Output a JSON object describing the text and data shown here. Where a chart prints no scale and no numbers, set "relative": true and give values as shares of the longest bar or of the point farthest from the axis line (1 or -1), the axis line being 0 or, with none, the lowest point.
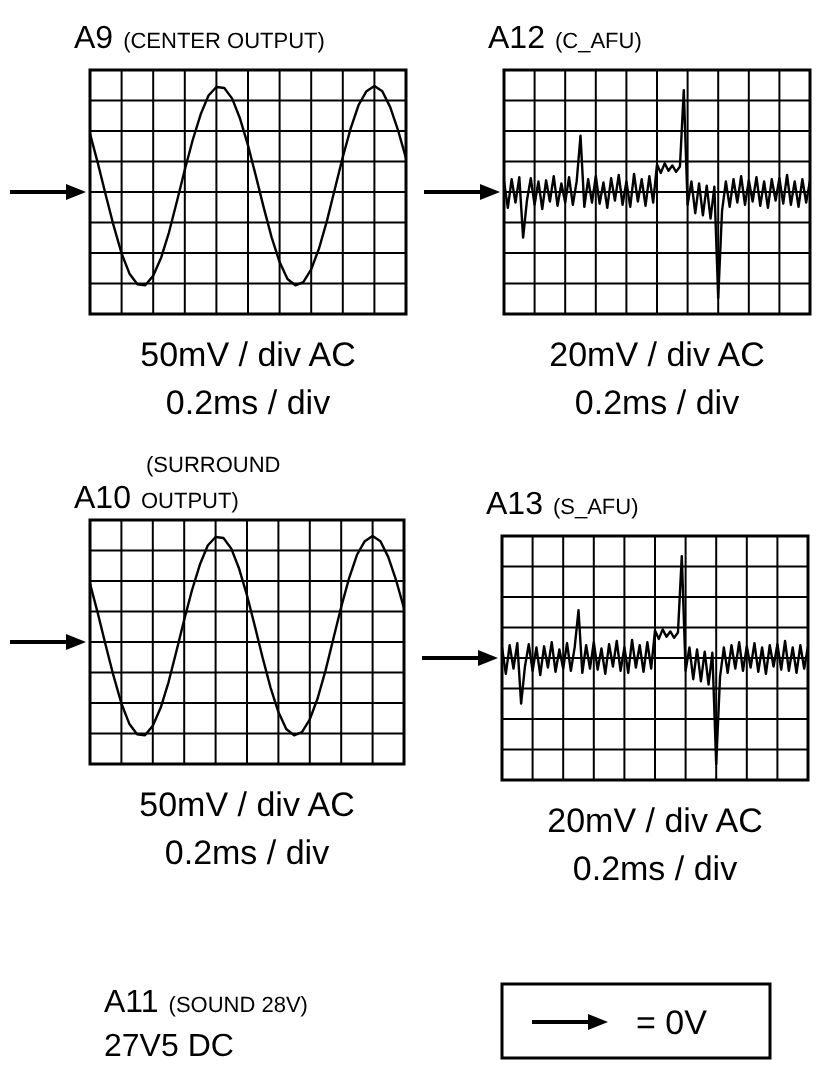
{
  "chart_data": [
    {
      "type": "line",
      "title": "A9",
      "subtitle": "(CENTER OUTPUT)",
      "annotations": [
        "50mV / div AC",
        "0.2ms / div"
      ],
      "relative": true,
      "grid": true,
      "categories": [
        null,
        null,
        null,
        null,
        null,
        null,
        null,
        null,
        null,
        null,
        null,
        null,
        null,
        null,
        null,
        null,
        null,
        null,
        null,
        null,
        null,
        null,
        null,
        null,
        null,
        null,
        null,
        null,
        null,
        null,
        null,
        null,
        null,
        null,
        null,
        null,
        null,
        null,
        null,
        null,
        null
      ],
      "series": [
        {
          "color": "#000000",
          "values": [
            0.55,
            0.27,
            -0.03,
            -0.32,
            -0.58,
            -0.77,
            -0.87,
            -0.88,
            -0.79,
            -0.62,
            -0.38,
            -0.09,
            0.21,
            0.49,
            0.73,
            0.91,
            0.99,
            0.98,
            0.88,
            0.69,
            0.44,
            0.15,
            -0.15,
            -0.43,
            -0.66,
            -0.82,
            -0.88,
            -0.85,
            -0.73,
            -0.53,
            -0.27,
            0.03,
            0.33,
            0.6,
            0.82,
            0.95,
            1,
            0.95,
            0.8,
            0.58,
            0.32
          ]
        }
      ]
    },
    {
      "type": "line",
      "title": "A12",
      "subtitle": "(C_AFU)",
      "annotations": [
        "20mV / div AC",
        "0.2ms / div"
      ],
      "relative": true,
      "grid": true,
      "categories": [
        null,
        null,
        null,
        null,
        null,
        null,
        null,
        null,
        null,
        null,
        null,
        null,
        null,
        null,
        null,
        null,
        null,
        null,
        null,
        null,
        null,
        null,
        null,
        null,
        null,
        null,
        null,
        null,
        null,
        null,
        null,
        null,
        null,
        null,
        null,
        null,
        null,
        null,
        null,
        null,
        null,
        null,
        null,
        null,
        null,
        null,
        null,
        null,
        null,
        null,
        null,
        null,
        null,
        null,
        null,
        null,
        null,
        null,
        null,
        null,
        null,
        null,
        null,
        null,
        null,
        null,
        null,
        null,
        null,
        null,
        null,
        null,
        null,
        null,
        null,
        null,
        null,
        null,
        null,
        null,
        null
      ],
      "series": [
        {
          "color": "#000000",
          "values": [
            0.1,
            -0.15,
            0.12,
            -0.1,
            0.14,
            -0.43,
            -0.08,
            0.13,
            -0.12,
            0.1,
            -0.16,
            0.11,
            -0.09,
            0.15,
            -0.13,
            0.08,
            -0.1,
            0.14,
            -0.12,
            0.1,
            0.53,
            -0.14,
            0.12,
            -0.1,
            0.15,
            -0.11,
            0.09,
            -0.15,
            0.13,
            -0.08,
            0.16,
            -0.12,
            0.1,
            -0.14,
            0.17,
            -0.09,
            0.12,
            -0.13,
            0.15,
            -0.1,
            0.26,
            0.18,
            0.27,
            0.2,
            0.25,
            0.19,
            0.24,
            0.96,
            -0.12,
            0.1,
            -0.2,
            0.08,
            -0.22,
            0.06,
            -0.25,
            0.05,
            -1,
            -0.18,
            0.1,
            -0.14,
            0.12,
            -0.1,
            0.15,
            -0.12,
            0.11,
            -0.09,
            0.14,
            -0.13,
            0.1,
            -0.15,
            0.12,
            -0.08,
            0.13,
            -0.11,
            0.16,
            -0.12,
            0.1,
            -0.14,
            0.12,
            -0.1,
            0.11
          ]
        }
      ]
    },
    {
      "type": "line",
      "title": "A10",
      "subtitle": "(SURROUND OUTPUT)",
      "annotations": [
        "50mV / div AC",
        "0.2ms / div"
      ],
      "relative": true,
      "grid": true,
      "categories": [
        null,
        null,
        null,
        null,
        null,
        null,
        null,
        null,
        null,
        null,
        null,
        null,
        null,
        null,
        null,
        null,
        null,
        null,
        null,
        null,
        null,
        null,
        null,
        null,
        null,
        null,
        null,
        null,
        null,
        null,
        null,
        null,
        null,
        null,
        null,
        null,
        null,
        null,
        null,
        null,
        null
      ],
      "series": [
        {
          "color": "#000000",
          "values": [
            0.55,
            0.27,
            -0.03,
            -0.32,
            -0.58,
            -0.77,
            -0.87,
            -0.88,
            -0.79,
            -0.62,
            -0.38,
            -0.09,
            0.21,
            0.49,
            0.73,
            0.91,
            0.99,
            0.98,
            0.88,
            0.69,
            0.44,
            0.15,
            -0.15,
            -0.43,
            -0.66,
            -0.82,
            -0.88,
            -0.85,
            -0.73,
            -0.53,
            -0.27,
            0.03,
            0.33,
            0.6,
            0.82,
            0.95,
            1,
            0.95,
            0.8,
            0.58,
            0.32
          ]
        }
      ]
    },
    {
      "type": "line",
      "title": "A13",
      "subtitle": "(S_AFU)",
      "annotations": [
        "20mV / div AC",
        "0.2ms / div"
      ],
      "relative": true,
      "grid": true,
      "categories": [
        null,
        null,
        null,
        null,
        null,
        null,
        null,
        null,
        null,
        null,
        null,
        null,
        null,
        null,
        null,
        null,
        null,
        null,
        null,
        null,
        null,
        null,
        null,
        null,
        null,
        null,
        null,
        null,
        null,
        null,
        null,
        null,
        null,
        null,
        null,
        null,
        null,
        null,
        null,
        null,
        null,
        null,
        null,
        null,
        null,
        null,
        null,
        null,
        null,
        null,
        null,
        null,
        null,
        null,
        null,
        null,
        null,
        null,
        null,
        null,
        null,
        null,
        null,
        null,
        null,
        null,
        null,
        null,
        null,
        null,
        null,
        null,
        null,
        null,
        null,
        null,
        null,
        null,
        null,
        null,
        null
      ],
      "series": [
        {
          "color": "#000000",
          "values": [
            0.1,
            -0.15,
            0.12,
            -0.1,
            0.14,
            -0.43,
            -0.08,
            0.13,
            -0.12,
            0.1,
            -0.16,
            0.11,
            -0.09,
            0.15,
            -0.13,
            0.08,
            -0.1,
            0.14,
            -0.12,
            0.1,
            0.45,
            -0.14,
            0.12,
            -0.1,
            0.15,
            -0.11,
            0.09,
            -0.15,
            0.13,
            -0.08,
            0.16,
            -0.12,
            0.1,
            -0.14,
            0.17,
            -0.09,
            0.12,
            -0.13,
            0.15,
            -0.1,
            0.26,
            0.18,
            0.27,
            0.2,
            0.25,
            0.19,
            0.24,
            0.96,
            -0.12,
            0.1,
            -0.2,
            0.08,
            -0.22,
            0.06,
            -0.25,
            0.05,
            -1,
            -0.18,
            0.1,
            -0.14,
            0.12,
            -0.1,
            0.15,
            -0.12,
            0.11,
            -0.09,
            0.14,
            -0.13,
            0.1,
            -0.15,
            0.12,
            -0.08,
            0.13,
            -0.11,
            0.16,
            -0.12,
            0.1,
            -0.14,
            0.12,
            -0.1,
            0.11
          ]
        }
      ]
    },
    {
      "type": "other",
      "annotations": [
        "A11 (SOUND 28V)",
        "27V5 DC",
        "= 0V"
      ]
    }
  ]
}
